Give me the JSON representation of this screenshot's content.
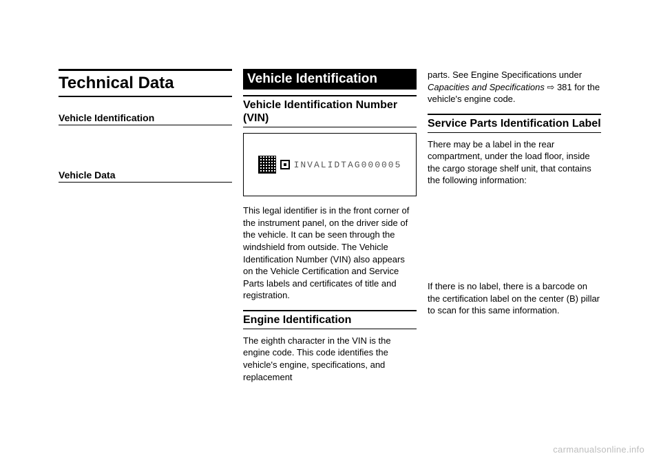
{
  "col1": {
    "main_title": "Technical Data",
    "toc1_heading": "Vehicle Identification",
    "toc2_heading": "Vehicle Data"
  },
  "col2": {
    "h1": "Vehicle Identification",
    "h2_vin": "Vehicle Identification Number (VIN)",
    "vin_sample": "INVALIDTAG000005",
    "vin_body": "This legal identifier is in the front corner of the instrument panel, on the driver side of the vehicle. It can be seen through the windshield from outside. The Vehicle Identification Number (VIN) also appears on the Vehicle Certification and Service Parts labels and certificates of title and registration.",
    "h2_engine": "Engine Identification",
    "engine_body": "The eighth character in the VIN is the engine code. This code identifies the vehicle's engine, specifications, and replacement"
  },
  "col3": {
    "cont_prefix": "parts. See  Engine Specifications under ",
    "cont_italic": "Capacities and Specifications",
    "cont_ref": " ⇨ 381",
    "cont_suffix": " for the vehicle's engine code.",
    "h2_service": "Service Parts Identification Label",
    "service_intro": "There may be a label in the rear compartment, under the load floor, inside the cargo storage shelf unit, that contains the following information:",
    "service_nolabel": "If there is no label, there is a barcode on the certification label on the center (B) pillar to scan for this same information."
  },
  "watermark": "carmanualsonline.info",
  "colors": {
    "text": "#000000",
    "bg": "#ffffff",
    "watermark": "#bdbdbd",
    "vin_text": "#555555"
  }
}
